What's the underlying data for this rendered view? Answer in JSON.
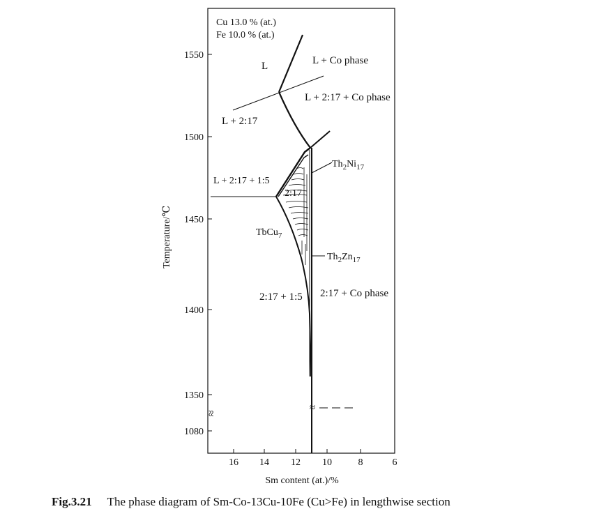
{
  "composition": {
    "cu": "Cu 13.0 % (at.)",
    "fe": "Fe 10.0 % (at.)"
  },
  "axes": {
    "ylabel": "Temperature/℃",
    "xlabel": "Sm content (at.)/%",
    "yticks": [
      "1550",
      "1500",
      "1450",
      "1400",
      "1350",
      "1080"
    ],
    "xticks": [
      "16",
      "14",
      "12",
      "10",
      "8",
      "6"
    ],
    "break_symbol": "≈"
  },
  "regions": {
    "liquid": "L",
    "liquid_co": "L + Co phase",
    "liquid_217_co": "L + 2:17 + Co phase",
    "liquid_217": "L + 2:17",
    "liquid_217_15": "L + 2:17 + 1:5",
    "phase_217": "2:17",
    "tbcu7": "TbCu",
    "tbcu7_sub": "7",
    "th2ni17": "Th",
    "th2ni17_sub1": "2",
    "th2ni17_mid": "Ni",
    "th2ni17_sub2": "17",
    "th2zn17": "Th",
    "th2zn17_sub1": "2",
    "th2zn17_mid": "Zn",
    "th2zn17_sub2": "17",
    "phase_217_15": "2:17 + 1:5",
    "phase_217_co": "2:17 + Co phase"
  },
  "caption": {
    "figure": "Fig.3.21",
    "text": "The phase diagram of Sm-Co-13Cu-10Fe (Cu>Fe) in lengthwise section"
  }
}
